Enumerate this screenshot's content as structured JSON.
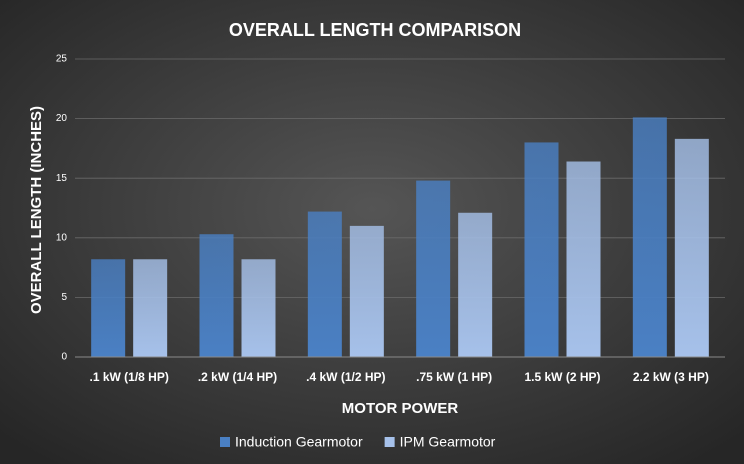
{
  "chart_data": {
    "type": "bar",
    "title": "OVERALL LENGTH COMPARISON",
    "x_label": "MOTOR POWER",
    "y_label": "OVERALL LENGTH (INCHES)",
    "categories": [
      ".1 kW (1/8 HP)",
      ".2 kW (1/4 HP)",
      ".4 kW (1/2 HP)",
      ".75 kW (1 HP)",
      "1.5 kW (2 HP)",
      "2.2 kW (3 HP)"
    ],
    "series": [
      {
        "name": "Induction Gearmotor",
        "color": "#4a80c4",
        "values": [
          8.2,
          10.3,
          12.2,
          14.8,
          18.0,
          20.1
        ]
      },
      {
        "name": "IPM Gearmotor",
        "color": "#a6c1ea",
        "values": [
          8.2,
          8.2,
          11.0,
          12.1,
          16.4,
          18.3
        ]
      }
    ],
    "ylim": [
      0,
      25
    ],
    "yticks": [
      0,
      5,
      10,
      15,
      20,
      25
    ],
    "grid": true,
    "legend": "bottom"
  }
}
